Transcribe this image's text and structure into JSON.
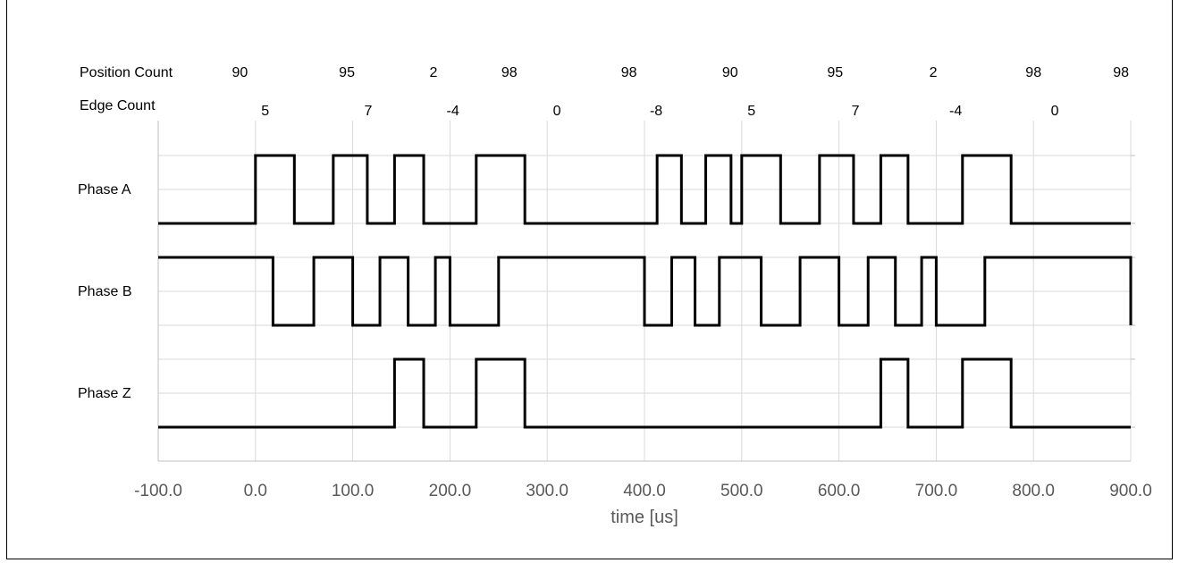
{
  "chart_data": {
    "type": "line",
    "xlabel": "time [us]",
    "xlim": [
      -100,
      900
    ],
    "x_ticks": [
      "-100.0",
      "0.0",
      "100.0",
      "200.0",
      "300.0",
      "400.0",
      "500.0",
      "600.0",
      "700.0",
      "800.0",
      "900.0"
    ],
    "grid": true,
    "rows": {
      "position_count": {
        "label": "Position Count",
        "items": [
          {
            "x": -16,
            "text": "90"
          },
          {
            "x": 94,
            "text": "95"
          },
          {
            "x": 183,
            "text": "2"
          },
          {
            "x": 261,
            "text": "98"
          },
          {
            "x": 384,
            "text": "98"
          },
          {
            "x": 488,
            "text": "90"
          },
          {
            "x": 596,
            "text": "95"
          },
          {
            "x": 697,
            "text": "2"
          },
          {
            "x": 800,
            "text": "98"
          },
          {
            "x": 890,
            "text": "98"
          }
        ]
      },
      "edge_count": {
        "label": "Edge Count",
        "items": [
          {
            "x": 10,
            "text": "5"
          },
          {
            "x": 116,
            "text": "7"
          },
          {
            "x": 203,
            "text": "-4"
          },
          {
            "x": 310,
            "text": "0"
          },
          {
            "x": 412,
            "text": "-8"
          },
          {
            "x": 510,
            "text": "5"
          },
          {
            "x": 617,
            "text": "7"
          },
          {
            "x": 720,
            "text": "-4"
          },
          {
            "x": 822,
            "text": "0"
          }
        ]
      }
    },
    "series": [
      {
        "name": "Phase A",
        "steps": [
          [
            -100,
            0
          ],
          [
            0,
            1
          ],
          [
            40,
            0
          ],
          [
            80,
            1
          ],
          [
            115,
            0
          ],
          [
            143,
            1
          ],
          [
            173,
            0
          ],
          [
            227,
            1
          ],
          [
            277,
            0
          ],
          [
            413,
            1
          ],
          [
            438,
            0
          ],
          [
            463,
            1
          ],
          [
            489,
            0
          ],
          [
            500,
            1
          ],
          [
            540,
            0
          ],
          [
            580,
            1
          ],
          [
            615,
            0
          ],
          [
            643,
            1
          ],
          [
            671,
            0
          ],
          [
            727,
            1
          ],
          [
            777,
            0
          ]
        ],
        "x_end": 900
      },
      {
        "name": "Phase B",
        "steps": [
          [
            -100,
            1
          ],
          [
            18,
            0
          ],
          [
            60,
            1
          ],
          [
            100,
            0
          ],
          [
            128,
            1
          ],
          [
            157,
            0
          ],
          [
            185,
            1
          ],
          [
            200,
            0
          ],
          [
            250,
            1
          ],
          [
            400,
            0
          ],
          [
            428,
            1
          ],
          [
            452,
            0
          ],
          [
            477,
            1
          ],
          [
            520,
            0
          ],
          [
            560,
            1
          ],
          [
            600,
            0
          ],
          [
            630,
            1
          ],
          [
            658,
            0
          ],
          [
            685,
            1
          ],
          [
            700,
            0
          ],
          [
            750,
            1
          ]
        ],
        "x_end": 900,
        "end_value": 0
      },
      {
        "name": "Phase Z",
        "steps": [
          [
            -100,
            0
          ],
          [
            143,
            1
          ],
          [
            173,
            0
          ],
          [
            227,
            1
          ],
          [
            277,
            0
          ],
          [
            643,
            1
          ],
          [
            671,
            0
          ],
          [
            727,
            1
          ],
          [
            777,
            0
          ]
        ],
        "x_end": 900
      }
    ]
  }
}
